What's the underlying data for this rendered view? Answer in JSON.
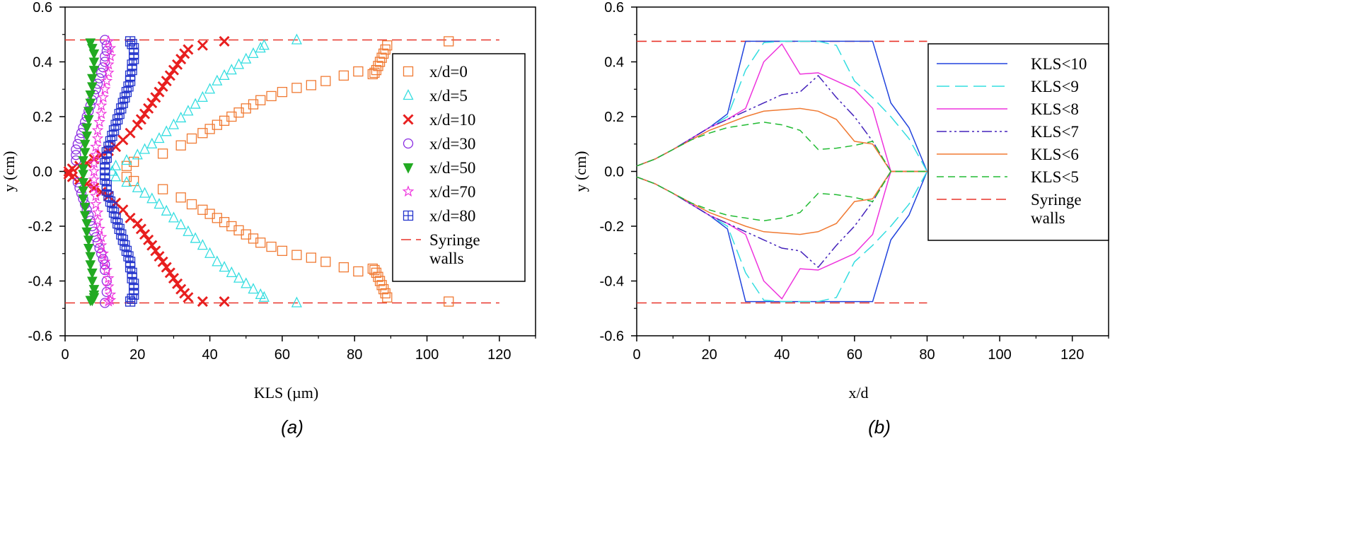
{
  "chart_data": [
    {
      "id": "a",
      "type": "scatter",
      "panel_label": "(a)",
      "xlabel": "KLS (µm)",
      "ylabel": "y (cm)",
      "xlim": [
        0,
        130
      ],
      "ylim": [
        -0.6,
        0.6
      ],
      "xticks": [
        "0",
        "20",
        "40",
        "60",
        "80",
        "100",
        "120"
      ],
      "yticks": [
        "-0.6",
        "-0.4",
        "-0.2",
        "0.0",
        "0.2",
        "0.4",
        "0.6"
      ],
      "legend_position": "right",
      "wall_label_lines": [
        "Syringe",
        "walls"
      ],
      "walls": {
        "y": [
          0.48,
          -0.48
        ],
        "x_range": [
          0,
          120
        ],
        "color": "#e8342a"
      },
      "series": [
        {
          "name": "x/d=0",
          "marker": "square-open",
          "color": "#f07a33",
          "x": [
            106,
            89,
            88.5,
            88,
            87.5,
            87,
            86.5,
            86,
            85.5,
            85,
            81,
            77,
            72,
            68,
            64,
            60,
            57,
            54,
            52,
            50,
            48,
            46,
            44,
            42,
            40,
            38,
            35,
            32,
            27,
            19,
            17,
            17,
            19,
            27,
            32,
            35,
            38,
            40,
            42,
            44,
            46,
            48,
            50,
            52,
            54,
            57,
            60,
            64,
            68,
            72,
            77,
            81,
            85,
            85.5,
            86,
            86.5,
            87,
            87.5,
            88,
            88.5,
            89,
            106
          ],
          "y": [
            0.475,
            0.46,
            0.445,
            0.43,
            0.415,
            0.4,
            0.385,
            0.37,
            0.36,
            0.355,
            0.365,
            0.35,
            0.33,
            0.315,
            0.305,
            0.29,
            0.275,
            0.26,
            0.245,
            0.23,
            0.215,
            0.2,
            0.185,
            0.17,
            0.155,
            0.14,
            0.12,
            0.095,
            0.065,
            0.035,
            0.02,
            -0.02,
            -0.035,
            -0.065,
            -0.095,
            -0.12,
            -0.14,
            -0.155,
            -0.17,
            -0.185,
            -0.2,
            -0.215,
            -0.23,
            -0.245,
            -0.26,
            -0.275,
            -0.29,
            -0.305,
            -0.315,
            -0.33,
            -0.35,
            -0.365,
            -0.355,
            -0.36,
            -0.37,
            -0.385,
            -0.4,
            -0.415,
            -0.43,
            -0.445,
            -0.46,
            -0.475
          ]
        },
        {
          "name": "x/d=5",
          "marker": "triangle-open",
          "color": "#33dde0",
          "x": [
            64,
            55,
            54,
            52,
            50,
            48,
            46,
            44,
            42,
            40,
            38,
            36,
            34,
            32,
            30,
            28,
            26,
            24,
            22,
            20,
            17,
            14,
            13,
            14,
            17,
            20,
            22,
            24,
            26,
            28,
            30,
            32,
            34,
            36,
            38,
            40,
            42,
            44,
            46,
            48,
            50,
            52,
            54,
            55,
            64
          ],
          "y": [
            0.48,
            0.46,
            0.45,
            0.43,
            0.41,
            0.39,
            0.37,
            0.35,
            0.33,
            0.3,
            0.27,
            0.245,
            0.22,
            0.195,
            0.17,
            0.145,
            0.12,
            0.1,
            0.08,
            0.06,
            0.04,
            0.02,
            0,
            -0.02,
            -0.04,
            -0.06,
            -0.08,
            -0.1,
            -0.12,
            -0.145,
            -0.17,
            -0.195,
            -0.22,
            -0.245,
            -0.27,
            -0.3,
            -0.33,
            -0.35,
            -0.37,
            -0.39,
            -0.41,
            -0.43,
            -0.45,
            -0.46,
            -0.48
          ]
        },
        {
          "name": "x/d=10",
          "marker": "cross",
          "color": "#e81f1f",
          "x": [
            44,
            38,
            34,
            33,
            32,
            31,
            30,
            29,
            28,
            27,
            26,
            25,
            24,
            23,
            22,
            21,
            20,
            18,
            16,
            14,
            12,
            10,
            8,
            6,
            4,
            2,
            1,
            1,
            2,
            4,
            6,
            8,
            10,
            12,
            14,
            16,
            18,
            20,
            21,
            22,
            23,
            24,
            25,
            26,
            27,
            28,
            29,
            30,
            31,
            32,
            33,
            34,
            38,
            44
          ],
          "y": [
            0.475,
            0.46,
            0.445,
            0.43,
            0.41,
            0.39,
            0.37,
            0.35,
            0.33,
            0.31,
            0.29,
            0.27,
            0.25,
            0.23,
            0.21,
            0.19,
            0.17,
            0.14,
            0.115,
            0.09,
            0.075,
            0.06,
            0.045,
            0.03,
            0.02,
            0.01,
            0,
            -0.01,
            -0.02,
            -0.03,
            -0.045,
            -0.06,
            -0.075,
            -0.09,
            -0.115,
            -0.14,
            -0.17,
            -0.19,
            -0.21,
            -0.23,
            -0.25,
            -0.27,
            -0.29,
            -0.31,
            -0.33,
            -0.35,
            -0.37,
            -0.39,
            -0.41,
            -0.43,
            -0.445,
            -0.46,
            -0.475,
            -0.475
          ]
        },
        {
          "name": "x/d=30",
          "marker": "circle-open",
          "color": "#8a2be2",
          "x": [
            11,
            11.5,
            11.5,
            11,
            11,
            10.5,
            10,
            9.5,
            9,
            8.5,
            8,
            7.5,
            7,
            6.5,
            6,
            5.5,
            5,
            4.5,
            4,
            3.5,
            3,
            3,
            3,
            3.5,
            4,
            4.5,
            5,
            5.5,
            6,
            6.5,
            7,
            7.5,
            8,
            8.5,
            9,
            9.5,
            10,
            10.5,
            11,
            11,
            11.5,
            11.5,
            11
          ],
          "y": [
            0.48,
            0.46,
            0.44,
            0.42,
            0.4,
            0.38,
            0.36,
            0.34,
            0.32,
            0.3,
            0.28,
            0.26,
            0.24,
            0.22,
            0.2,
            0.18,
            0.16,
            0.14,
            0.12,
            0.1,
            0.08,
            0.06,
            0.04,
            -0.04,
            -0.06,
            -0.08,
            -0.1,
            -0.12,
            -0.14,
            -0.16,
            -0.18,
            -0.2,
            -0.22,
            -0.24,
            -0.26,
            -0.28,
            -0.3,
            -0.32,
            -0.34,
            -0.36,
            -0.4,
            -0.44,
            -0.48
          ]
        },
        {
          "name": "x/d=50",
          "marker": "triangle-down-filled",
          "color": "#22aa22",
          "x": [
            7,
            7.5,
            8,
            8,
            8,
            7.5,
            7.5,
            7,
            7,
            6.5,
            6.5,
            6,
            6,
            5.5,
            5.5,
            5,
            5,
            5,
            5,
            5,
            5,
            5.5,
            5.5,
            6,
            6,
            6.5,
            6.5,
            7,
            7,
            7.5,
            7.5,
            8,
            8,
            8,
            7.5,
            7
          ],
          "y": [
            0.47,
            0.45,
            0.43,
            0.4,
            0.37,
            0.34,
            0.31,
            0.28,
            0.25,
            0.22,
            0.19,
            0.16,
            0.13,
            0.1,
            0.07,
            0.04,
            0.01,
            -0.01,
            -0.04,
            -0.07,
            -0.1,
            -0.13,
            -0.16,
            -0.19,
            -0.22,
            -0.25,
            -0.28,
            -0.31,
            -0.34,
            -0.37,
            -0.4,
            -0.43,
            -0.45,
            -0.46,
            -0.47,
            -0.47
          ]
        },
        {
          "name": "x/d=70",
          "marker": "star-open",
          "color": "#ee33dd",
          "x": [
            12,
            12.5,
            12.5,
            12,
            12,
            11.5,
            11,
            10.5,
            10,
            10,
            9.5,
            9,
            9,
            8.5,
            8.5,
            8,
            8,
            8,
            8,
            8.5,
            8.5,
            9,
            9,
            9.5,
            10,
            10,
            10.5,
            11,
            11.5,
            12,
            12,
            12.5,
            12.5,
            12
          ],
          "y": [
            0.475,
            0.45,
            0.42,
            0.39,
            0.36,
            0.33,
            0.3,
            0.27,
            0.24,
            0.21,
            0.18,
            0.15,
            0.12,
            0.09,
            0.06,
            0.03,
            0,
            -0.03,
            -0.06,
            -0.09,
            -0.12,
            -0.15,
            -0.18,
            -0.21,
            -0.24,
            -0.27,
            -0.3,
            -0.33,
            -0.36,
            -0.39,
            -0.42,
            -0.45,
            -0.47,
            -0.475
          ]
        },
        {
          "name": "x/d=80",
          "marker": "square-plus",
          "color": "#2233cc",
          "x": [
            18,
            18.5,
            19,
            19,
            19,
            18.5,
            18.5,
            18,
            18,
            17.5,
            17,
            16.5,
            16,
            15.5,
            15,
            14.5,
            14,
            13.5,
            13,
            12.5,
            12,
            11.5,
            11.5,
            11,
            11,
            11,
            11,
            11.5,
            11.5,
            12,
            12.5,
            13,
            13.5,
            14,
            14.5,
            15,
            15.5,
            16,
            16.5,
            17,
            17.5,
            18,
            18,
            18.5,
            18.5,
            19,
            19,
            19,
            18.5,
            18
          ],
          "y": [
            0.475,
            0.465,
            0.45,
            0.43,
            0.41,
            0.39,
            0.37,
            0.35,
            0.33,
            0.31,
            0.29,
            0.27,
            0.25,
            0.23,
            0.21,
            0.19,
            0.17,
            0.15,
            0.13,
            0.11,
            0.09,
            0.07,
            0.05,
            0.03,
            0.01,
            -0.01,
            -0.03,
            -0.05,
            -0.07,
            -0.09,
            -0.11,
            -0.13,
            -0.15,
            -0.17,
            -0.19,
            -0.21,
            -0.23,
            -0.25,
            -0.27,
            -0.29,
            -0.31,
            -0.33,
            -0.35,
            -0.37,
            -0.39,
            -0.41,
            -0.43,
            -0.45,
            -0.465,
            -0.475
          ]
        }
      ]
    },
    {
      "id": "b",
      "type": "line",
      "panel_label": "(b)",
      "xlabel": "x/d",
      "ylabel": "y (cm)",
      "xlim": [
        0,
        130
      ],
      "ylim": [
        -0.6,
        0.6
      ],
      "xticks": [
        "0",
        "20",
        "40",
        "60",
        "80",
        "100",
        "120"
      ],
      "yticks": [
        "-0.6",
        "-0.4",
        "-0.2",
        "0.0",
        "0.2",
        "0.4",
        "0.6"
      ],
      "legend_position": "right",
      "wall_label_lines": [
        "Syringe",
        "walls"
      ],
      "walls": {
        "y": [
          0.475,
          -0.48
        ],
        "x_range": [
          0,
          80
        ],
        "color": "#e8342a"
      },
      "series": [
        {
          "name": "KLS<10",
          "color": "#2244dd",
          "dash": "",
          "x": [
            0,
            5,
            10,
            15,
            20,
            25,
            30,
            35,
            40,
            45,
            50,
            55,
            60,
            65,
            70,
            75,
            80
          ],
          "upper": [
            0.02,
            0.045,
            0.08,
            0.12,
            0.16,
            0.21,
            0.475,
            0.475,
            0.475,
            0.475,
            0.475,
            0.475,
            0.475,
            0.475,
            0.25,
            0.16,
            0
          ]
        },
        {
          "name": "KLS<9",
          "color": "#33dde0",
          "dash": "18,8",
          "x": [
            0,
            5,
            10,
            15,
            20,
            25,
            30,
            35,
            40,
            45,
            50,
            55,
            60,
            65,
            70,
            75,
            80
          ],
          "upper": [
            0.02,
            0.045,
            0.08,
            0.12,
            0.16,
            0.2,
            0.37,
            0.47,
            0.475,
            0.475,
            0.475,
            0.46,
            0.33,
            0.27,
            0.2,
            0.12,
            0
          ]
        },
        {
          "name": "KLS<8",
          "color": "#ee33dd",
          "dash": "",
          "x": [
            0,
            5,
            10,
            15,
            20,
            25,
            30,
            35,
            40,
            45,
            50,
            55,
            60,
            65,
            70,
            75,
            80
          ],
          "upper": [
            0.02,
            0.045,
            0.08,
            0.12,
            0.16,
            0.19,
            0.23,
            0.4,
            0.465,
            0.355,
            0.36,
            0.33,
            0.3,
            0.23,
            0,
            0,
            0
          ]
        },
        {
          "name": "KLS<7",
          "color": "#4422bb",
          "dash": "14,4,3,4,3,4",
          "x": [
            0,
            5,
            10,
            15,
            20,
            25,
            30,
            35,
            40,
            45,
            50,
            55,
            60,
            65,
            70,
            75,
            80
          ],
          "upper": [
            0.02,
            0.045,
            0.08,
            0.12,
            0.16,
            0.19,
            0.22,
            0.25,
            0.28,
            0.29,
            0.35,
            0.27,
            0.2,
            0.11,
            0,
            0,
            0
          ]
        },
        {
          "name": "KLS<6",
          "color": "#f07a33",
          "dash": "",
          "x": [
            0,
            5,
            10,
            15,
            20,
            25,
            30,
            35,
            40,
            45,
            50,
            55,
            60,
            65,
            70,
            75,
            80
          ],
          "upper": [
            0.02,
            0.045,
            0.08,
            0.115,
            0.15,
            0.175,
            0.2,
            0.22,
            0.225,
            0.23,
            0.22,
            0.19,
            0.11,
            0.1,
            0,
            0,
            0
          ]
        },
        {
          "name": "KLS<5",
          "color": "#22bb33",
          "dash": "10,6",
          "x": [
            0,
            5,
            10,
            15,
            20,
            25,
            30,
            35,
            40,
            45,
            50,
            55,
            60,
            65,
            70,
            75,
            80
          ],
          "upper": [
            0.02,
            0.045,
            0.08,
            0.115,
            0.14,
            0.16,
            0.17,
            0.18,
            0.17,
            0.15,
            0.08,
            0.085,
            0.095,
            0.11,
            0,
            0,
            0
          ]
        }
      ]
    }
  ]
}
